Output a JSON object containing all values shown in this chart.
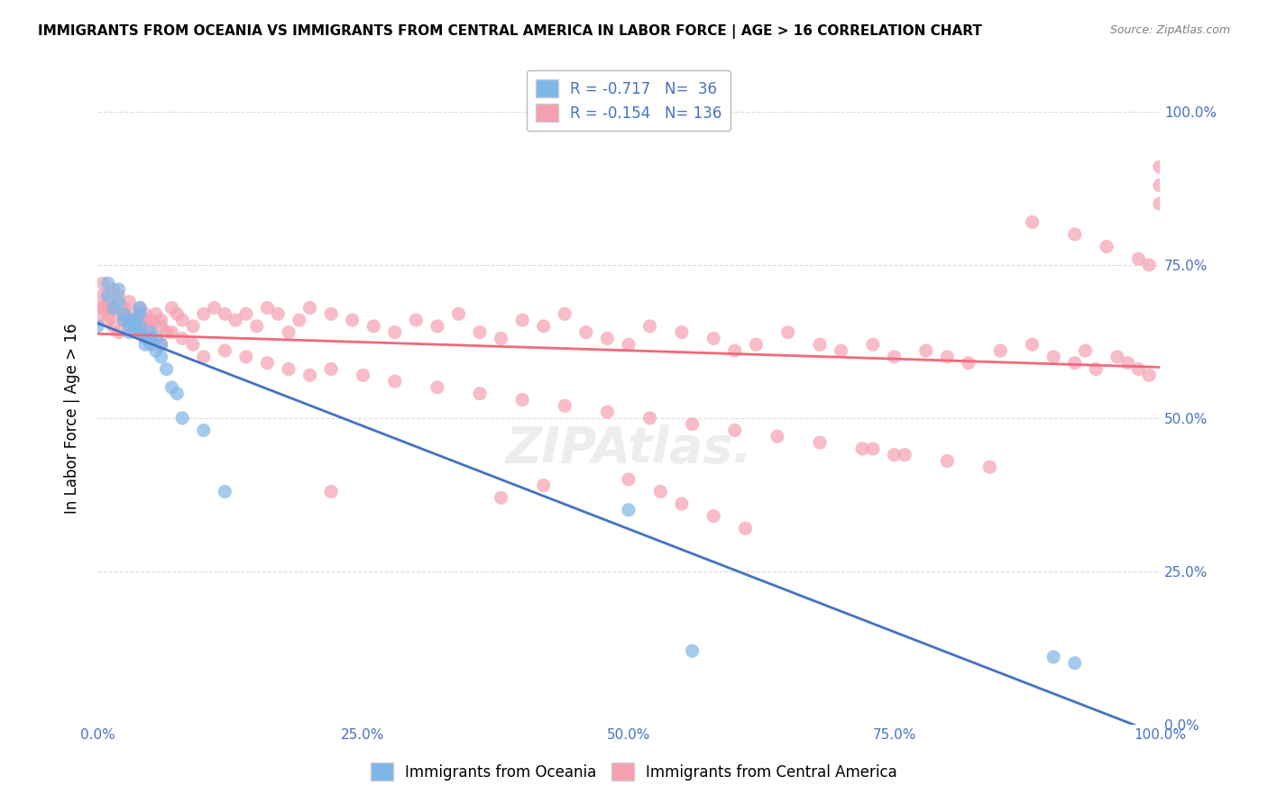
{
  "title": "IMMIGRANTS FROM OCEANIA VS IMMIGRANTS FROM CENTRAL AMERICA IN LABOR FORCE | AGE > 16 CORRELATION CHART",
  "source": "Source: ZipAtlas.com",
  "xlabel": "",
  "ylabel": "In Labor Force | Age > 16",
  "legend_label1": "Immigrants from Oceania",
  "legend_label2": "Immigrants from Central America",
  "r1": "-0.717",
  "n1": "36",
  "r2": "-0.154",
  "n2": "136",
  "color1": "#7EB6E8",
  "color2": "#F4A0B0",
  "line_color1": "#4472C4",
  "line_color2": "#F4687A",
  "bg_color": "#FFFFFF",
  "grid_color": "#CCCCCC",
  "text_color": "#4472C4",
  "xmin": 0.0,
  "xmax": 1.0,
  "ymin": 0.0,
  "ymax": 1.0,
  "oceania_x": [
    0.0,
    0.01,
    0.01,
    0.015,
    0.02,
    0.02,
    0.025,
    0.025,
    0.03,
    0.03,
    0.03,
    0.035,
    0.035,
    0.04,
    0.04,
    0.04,
    0.04,
    0.045,
    0.045,
    0.05,
    0.05,
    0.05,
    0.055,
    0.055,
    0.06,
    0.06,
    0.065,
    0.07,
    0.075,
    0.08,
    0.1,
    0.12,
    0.5,
    0.56,
    0.9,
    0.92
  ],
  "oceania_y": [
    0.65,
    0.72,
    0.7,
    0.68,
    0.71,
    0.69,
    0.67,
    0.66,
    0.65,
    0.64,
    0.66,
    0.65,
    0.66,
    0.67,
    0.65,
    0.64,
    0.68,
    0.63,
    0.62,
    0.64,
    0.63,
    0.62,
    0.63,
    0.61,
    0.62,
    0.6,
    0.58,
    0.55,
    0.54,
    0.5,
    0.48,
    0.38,
    0.35,
    0.12,
    0.11,
    0.1
  ],
  "central_x": [
    0.0,
    0.0,
    0.005,
    0.005,
    0.01,
    0.01,
    0.01,
    0.015,
    0.015,
    0.02,
    0.02,
    0.025,
    0.025,
    0.025,
    0.03,
    0.03,
    0.035,
    0.035,
    0.04,
    0.04,
    0.04,
    0.045,
    0.045,
    0.05,
    0.05,
    0.055,
    0.06,
    0.06,
    0.065,
    0.07,
    0.075,
    0.08,
    0.09,
    0.1,
    0.11,
    0.12,
    0.13,
    0.14,
    0.15,
    0.16,
    0.17,
    0.18,
    0.19,
    0.2,
    0.22,
    0.24,
    0.26,
    0.28,
    0.3,
    0.32,
    0.34,
    0.36,
    0.38,
    0.4,
    0.42,
    0.44,
    0.46,
    0.48,
    0.5,
    0.52,
    0.55,
    0.58,
    0.6,
    0.62,
    0.65,
    0.68,
    0.7,
    0.73,
    0.75,
    0.78,
    0.8,
    0.82,
    0.85,
    0.88,
    0.9,
    0.92,
    0.93,
    0.94,
    0.96,
    0.97,
    0.98,
    0.99,
    1.0,
    1.0,
    0.005,
    0.01,
    0.015,
    0.02,
    0.025,
    0.03,
    0.035,
    0.04,
    0.05,
    0.06,
    0.07,
    0.08,
    0.09,
    0.1,
    0.12,
    0.14,
    0.16,
    0.18,
    0.2,
    0.22,
    0.25,
    0.28,
    0.32,
    0.36,
    0.4,
    0.44,
    0.48,
    0.52,
    0.56,
    0.6,
    0.64,
    0.68,
    0.72,
    0.76,
    0.8,
    0.84,
    0.88,
    0.92,
    0.95,
    0.98,
    0.99,
    1.0,
    0.73,
    0.75,
    0.22,
    0.38,
    0.42,
    0.5,
    0.53,
    0.55,
    0.58,
    0.61
  ],
  "central_y": [
    0.68,
    0.66,
    0.72,
    0.7,
    0.69,
    0.68,
    0.67,
    0.71,
    0.68,
    0.7,
    0.67,
    0.68,
    0.66,
    0.67,
    0.69,
    0.65,
    0.67,
    0.66,
    0.68,
    0.65,
    0.64,
    0.66,
    0.67,
    0.65,
    0.66,
    0.67,
    0.65,
    0.66,
    0.64,
    0.68,
    0.67,
    0.66,
    0.65,
    0.67,
    0.68,
    0.67,
    0.66,
    0.67,
    0.65,
    0.68,
    0.67,
    0.64,
    0.66,
    0.68,
    0.67,
    0.66,
    0.65,
    0.64,
    0.66,
    0.65,
    0.67,
    0.64,
    0.63,
    0.66,
    0.65,
    0.67,
    0.64,
    0.63,
    0.62,
    0.65,
    0.64,
    0.63,
    0.61,
    0.62,
    0.64,
    0.62,
    0.61,
    0.62,
    0.6,
    0.61,
    0.6,
    0.59,
    0.61,
    0.62,
    0.6,
    0.59,
    0.61,
    0.58,
    0.6,
    0.59,
    0.58,
    0.57,
    0.91,
    0.88,
    0.68,
    0.66,
    0.65,
    0.64,
    0.67,
    0.66,
    0.65,
    0.64,
    0.63,
    0.62,
    0.64,
    0.63,
    0.62,
    0.6,
    0.61,
    0.6,
    0.59,
    0.58,
    0.57,
    0.58,
    0.57,
    0.56,
    0.55,
    0.54,
    0.53,
    0.52,
    0.51,
    0.5,
    0.49,
    0.48,
    0.47,
    0.46,
    0.45,
    0.44,
    0.43,
    0.42,
    0.82,
    0.8,
    0.78,
    0.76,
    0.75,
    0.85,
    0.45,
    0.44,
    0.38,
    0.37,
    0.39,
    0.4,
    0.38,
    0.36,
    0.34,
    0.32
  ]
}
